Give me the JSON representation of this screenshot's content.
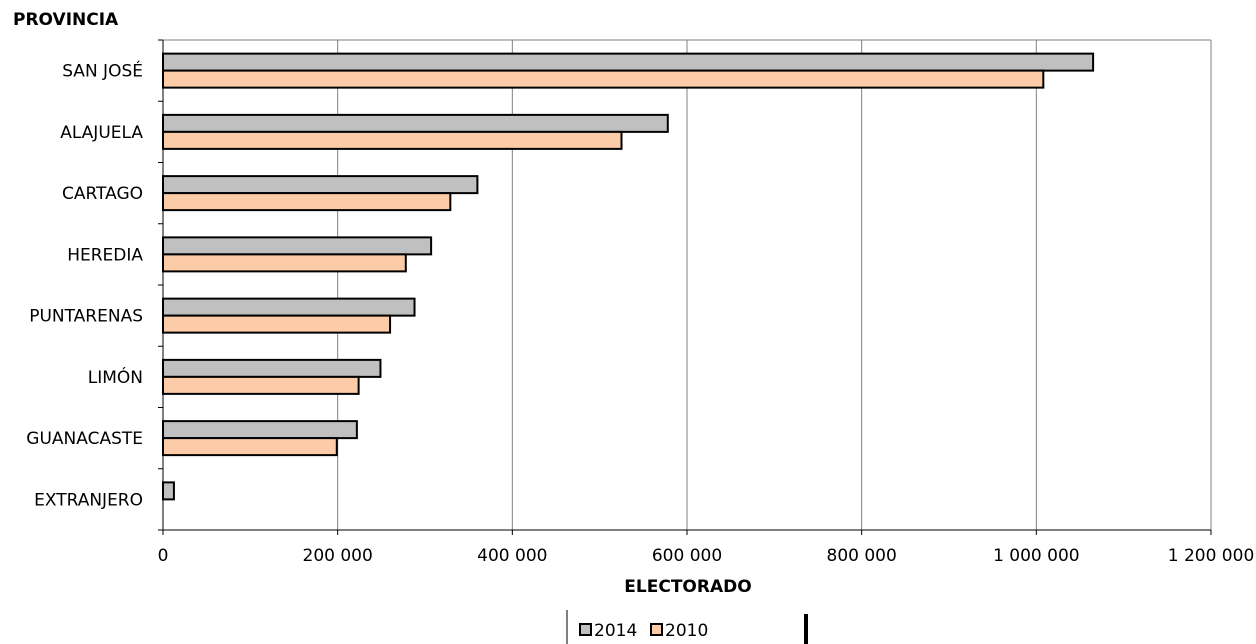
{
  "chart_data": {
    "type": "bar",
    "orientation": "horizontal",
    "categories": [
      "SAN JOSÉ",
      "ALAJUELA",
      "CARTAGO",
      "HEREDIA",
      "PUNTARENAS",
      "LIMÓN",
      "GUANACASTE",
      "EXTRANJERO"
    ],
    "series": [
      {
        "name": "2014",
        "color": "#c0c0c0",
        "values": [
          1065000,
          578000,
          360000,
          307000,
          288000,
          249000,
          222000,
          12500
        ]
      },
      {
        "name": "2010",
        "color": "#fccca8",
        "values": [
          1008000,
          525000,
          329000,
          278000,
          260000,
          224000,
          199000,
          0
        ]
      }
    ],
    "xlabel": "ELECTORADO",
    "ylabel": "PROVINCIA",
    "xlim": [
      0,
      1200000
    ],
    "xticks": [
      0,
      200000,
      400000,
      600000,
      800000,
      1000000,
      1200000
    ],
    "xtick_labels": [
      "0",
      "200 000",
      "400 000",
      "600 000",
      "800 000",
      "1 000 000",
      "1 200 000"
    ],
    "grid": "vertical",
    "legend_position": "bottom-center"
  }
}
